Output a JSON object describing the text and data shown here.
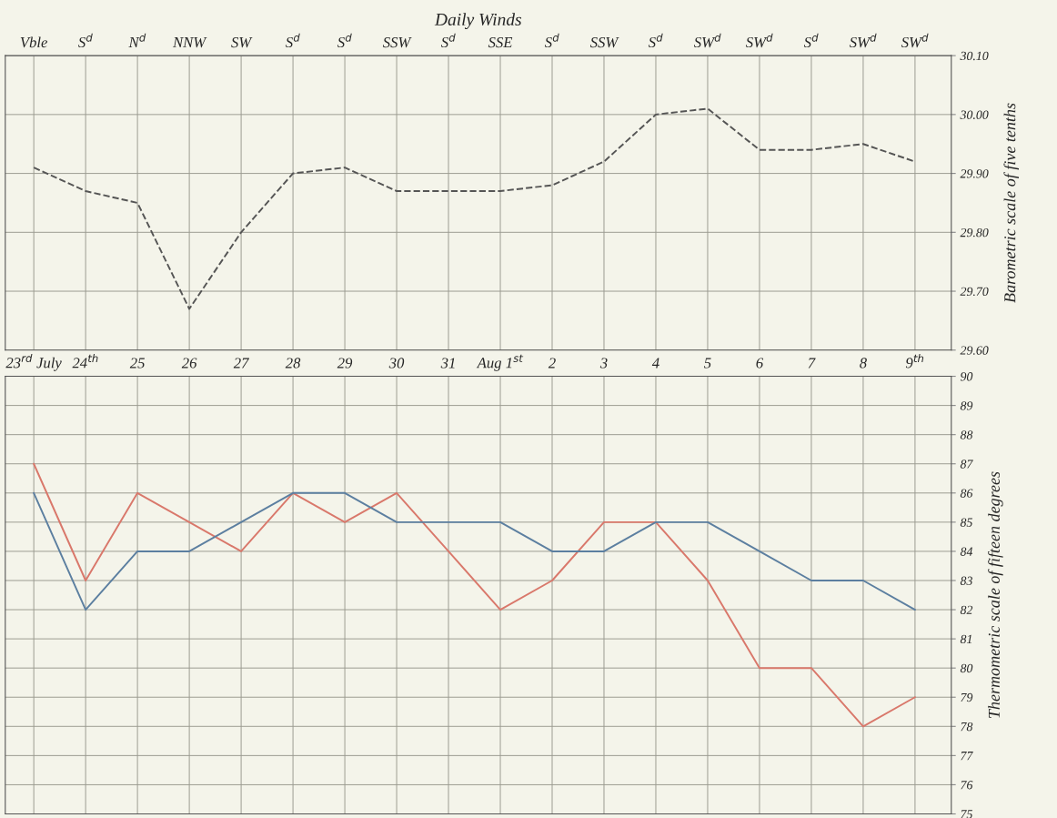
{
  "chart_data": [
    {
      "type": "line",
      "title": "Daily Winds",
      "categories": [
        "Vble",
        "S$^{d}$",
        "N$^{d}$",
        "NNW",
        "SW",
        "S$^{d}$",
        "S$^{d}$",
        "SSW",
        "S$^{d}$",
        "SSE",
        "S$^{d}$",
        "SSW",
        "S$^{d}$",
        "SW$^{d}$",
        "SW$^{d}$",
        "S$^{d}$",
        "SW$^{d}$",
        "SW$^{d}$"
      ],
      "ylabel": "Barometric scale of five tenths",
      "series": [
        {
          "color": "#555555",
          "line_style": "dashed",
          "values": [
            29.91,
            29.87,
            29.85,
            29.67,
            29.8,
            29.9,
            29.91,
            29.87,
            29.87,
            29.87,
            29.88,
            29.92,
            30.0,
            30.01,
            29.94,
            29.94,
            29.95,
            29.92
          ]
        }
      ],
      "ylim": [
        29.6,
        30.1
      ],
      "yticks": [
        {
          "value": 29.6,
          "label": "29.60"
        },
        {
          "value": 29.7,
          "label": "29.70"
        },
        {
          "value": 29.8,
          "label": "29.80"
        },
        {
          "value": 29.9,
          "label": "29.90"
        },
        {
          "value": 30.0,
          "label": "30.00"
        },
        {
          "value": 30.1,
          "label": "30.10"
        }
      ],
      "grid": true
    },
    {
      "type": "line",
      "categories": [
        "23$^{rd}$ July",
        "24$^{th}$",
        "25",
        "26",
        "27",
        "28",
        "29",
        "30",
        "31",
        "Aug 1$^{st}$",
        "2",
        "3",
        "4",
        "5",
        "6",
        "7",
        "8",
        "9$^{th}$"
      ],
      "ylabel": "Thermometric scale of fifteen degrees",
      "series": [
        {
          "color": "#d9786b",
          "line_style": "solid",
          "values": [
            87,
            83,
            86,
            85,
            84,
            86,
            85,
            86,
            84,
            82,
            83,
            85,
            85,
            83,
            80,
            80,
            78,
            79
          ]
        },
        {
          "color": "#5c7fa0",
          "line_style": "solid",
          "values": [
            86,
            82,
            84,
            84,
            85,
            86,
            86,
            85,
            85,
            85,
            84,
            84,
            85,
            85,
            84,
            83,
            83,
            82
          ]
        }
      ],
      "ylim": [
        75,
        90
      ],
      "yticks": [
        75,
        76,
        77,
        78,
        79,
        80,
        81,
        82,
        83,
        84,
        85,
        86,
        87,
        88,
        89,
        90
      ],
      "grid": true
    }
  ]
}
